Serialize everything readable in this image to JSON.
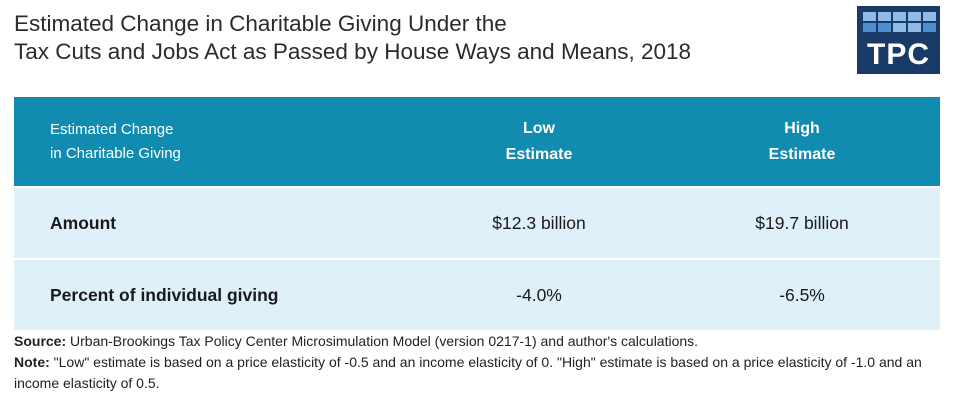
{
  "title": {
    "line1": "Estimated Change in Charitable Giving Under the",
    "line2": "Tax Cuts and Jobs Act as Passed by House Ways and Means, 2018"
  },
  "logo": {
    "text": "TPC",
    "colors": {
      "bg": "#1a3a67",
      "tile": "#4f8fd0",
      "tile_light": "#8fbbe6"
    }
  },
  "table": {
    "header": {
      "col1_line1": "Estimated Change",
      "col1_line2": "in Charitable Giving",
      "col2_line1": "Low",
      "col2_line2": "Estimate",
      "col3_line1": "High",
      "col3_line2": "Estimate"
    },
    "rows": [
      {
        "label": "Amount",
        "low": "$12.3 billion",
        "high": "$19.7 billion"
      },
      {
        "label": "Percent of individual giving",
        "low": "-4.0%",
        "high": "-6.5%"
      }
    ],
    "colors": {
      "header_bg": "#118bb0",
      "row_bg": "#dff0f8"
    }
  },
  "notes": {
    "source_label": "Source:",
    "source_text": " Urban-Brookings Tax Policy Center Microsimulation Model (version 0217-1) and author's calculations.",
    "note_label": "Note:",
    "note_text": " \"Low\" estimate is based on a price elasticity of -0.5 and an income elasticity of 0. \"High\" estimate is based on a price elasticity of -1.0 and an income elasticity of 0.5."
  }
}
